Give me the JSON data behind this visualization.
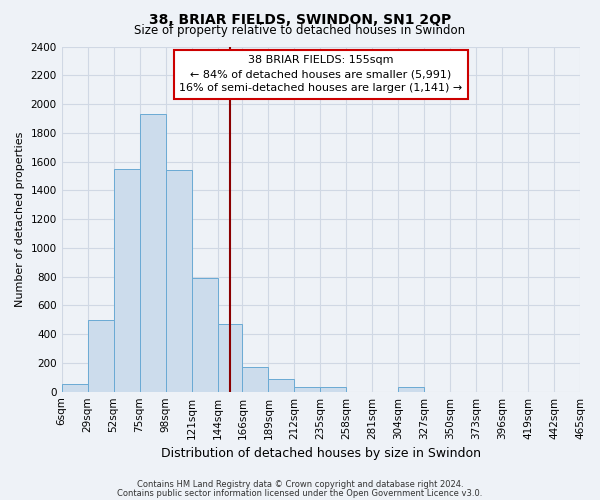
{
  "title": "38, BRIAR FIELDS, SWINDON, SN1 2QP",
  "subtitle": "Size of property relative to detached houses in Swindon",
  "xlabel": "Distribution of detached houses by size in Swindon",
  "ylabel": "Number of detached properties",
  "bar_color": "#ccdcec",
  "bar_edge_color": "#6aaad4",
  "background_color": "#eef2f7",
  "grid_color": "#d0d8e4",
  "bin_labels": [
    "6sqm",
    "29sqm",
    "52sqm",
    "75sqm",
    "98sqm",
    "121sqm",
    "144sqm",
    "166sqm",
    "189sqm",
    "212sqm",
    "235sqm",
    "258sqm",
    "281sqm",
    "304sqm",
    "327sqm",
    "350sqm",
    "373sqm",
    "396sqm",
    "419sqm",
    "442sqm",
    "465sqm"
  ],
  "bin_edges": [
    6,
    29,
    52,
    75,
    98,
    121,
    144,
    166,
    189,
    212,
    235,
    258,
    281,
    304,
    327,
    350,
    373,
    396,
    419,
    442,
    465
  ],
  "bar_heights": [
    55,
    500,
    1550,
    1930,
    1540,
    790,
    470,
    175,
    90,
    30,
    30,
    0,
    0,
    30,
    0,
    0,
    0,
    0,
    0,
    0
  ],
  "ylim": [
    0,
    2400
  ],
  "yticks": [
    0,
    200,
    400,
    600,
    800,
    1000,
    1200,
    1400,
    1600,
    1800,
    2000,
    2200,
    2400
  ],
  "property_value": 155,
  "vline_color": "#8b0000",
  "annotation_title": "38 BRIAR FIELDS: 155sqm",
  "annotation_line1": "← 84% of detached houses are smaller (5,991)",
  "annotation_line2": "16% of semi-detached houses are larger (1,141) →",
  "annotation_box_facecolor": "white",
  "annotation_box_edgecolor": "#cc0000",
  "footer1": "Contains HM Land Registry data © Crown copyright and database right 2024.",
  "footer2": "Contains public sector information licensed under the Open Government Licence v3.0.",
  "title_fontsize": 10,
  "subtitle_fontsize": 8.5,
  "ylabel_fontsize": 8,
  "xlabel_fontsize": 9,
  "tick_fontsize": 7.5,
  "annot_fontsize": 8,
  "footer_fontsize": 6
}
